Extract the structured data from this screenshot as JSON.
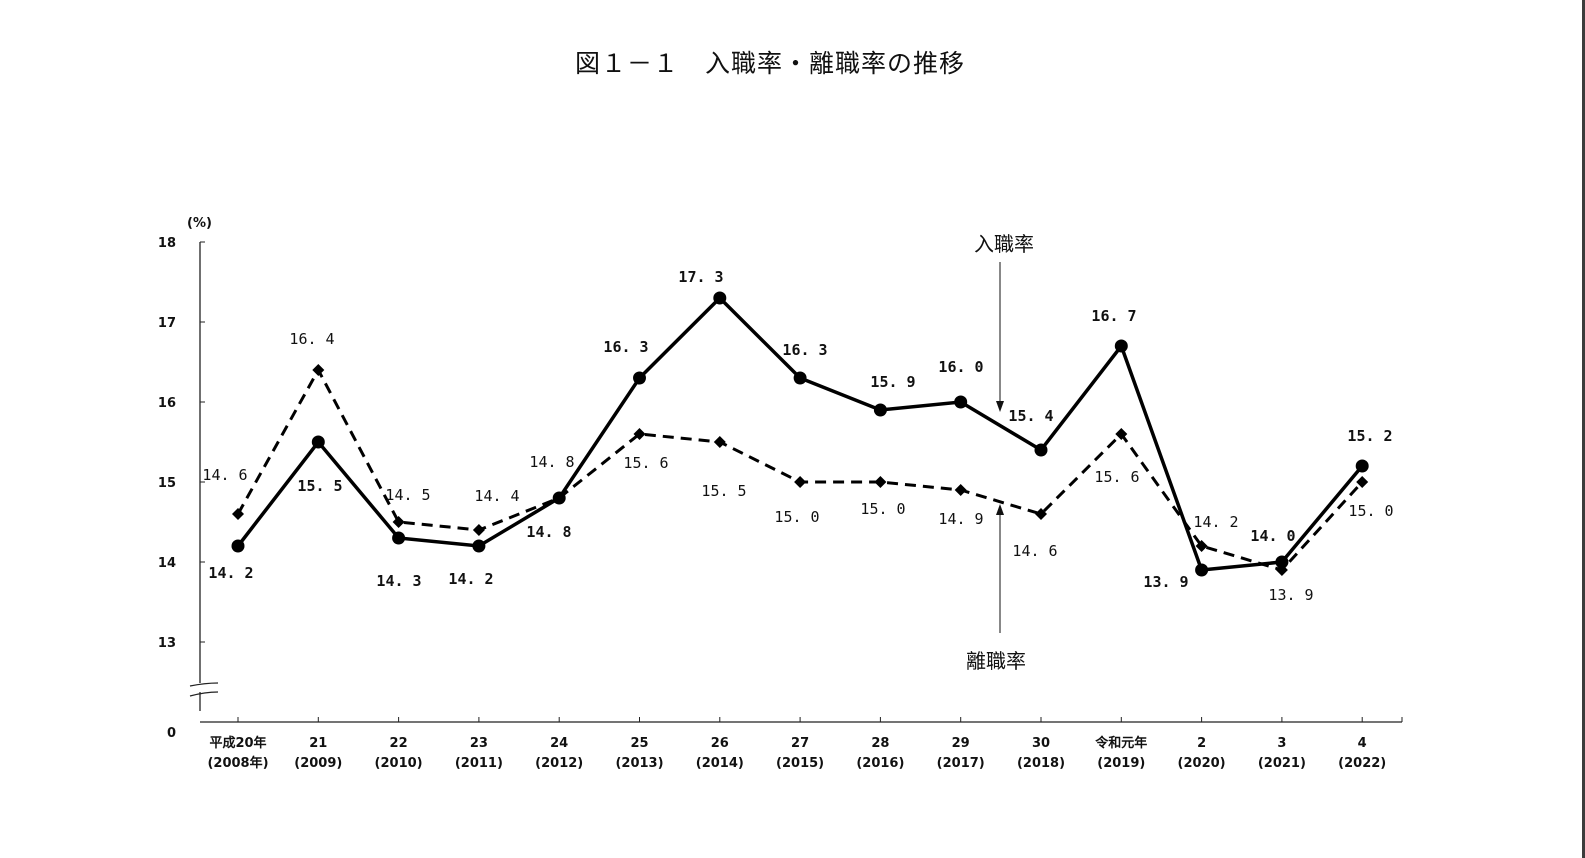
{
  "chart_data": {
    "type": "line",
    "title": "図１－１　入職率・離職率の推移",
    "ylabel": "(%)",
    "ylim": [
      13,
      18
    ],
    "y_break": true,
    "yticks": [
      "0",
      "13",
      "14",
      "15",
      "16",
      "17",
      "18"
    ],
    "categories": [
      [
        "平成20年",
        "(2008年)"
      ],
      [
        "21",
        "(2009)"
      ],
      [
        "22",
        "(2010)"
      ],
      [
        "23",
        "(2011)"
      ],
      [
        "24",
        "(2012)"
      ],
      [
        "25",
        "(2013)"
      ],
      [
        "26",
        "(2014)"
      ],
      [
        "27",
        "(2015)"
      ],
      [
        "28",
        "(2016)"
      ],
      [
        "29",
        "(2017)"
      ],
      [
        "30",
        "(2018)"
      ],
      [
        "令和元年",
        "(2019)"
      ],
      [
        "2",
        "(2020)"
      ],
      [
        "3",
        "(2021)"
      ],
      [
        "4",
        "(2022)"
      ]
    ],
    "series": [
      {
        "name": "入職率",
        "style": "solid-circle",
        "values": [
          14.2,
          15.5,
          14.3,
          14.2,
          14.8,
          16.3,
          17.3,
          16.3,
          15.9,
          16.0,
          15.4,
          16.7,
          13.9,
          14.0,
          15.2
        ]
      },
      {
        "name": "離職率",
        "style": "dashed-diamond",
        "values": [
          14.6,
          16.4,
          14.5,
          14.4,
          14.8,
          15.6,
          15.5,
          15.0,
          15.0,
          14.9,
          14.6,
          15.6,
          14.2,
          13.9,
          15.0
        ]
      }
    ],
    "grid": false,
    "legend": "annotations with arrows"
  }
}
